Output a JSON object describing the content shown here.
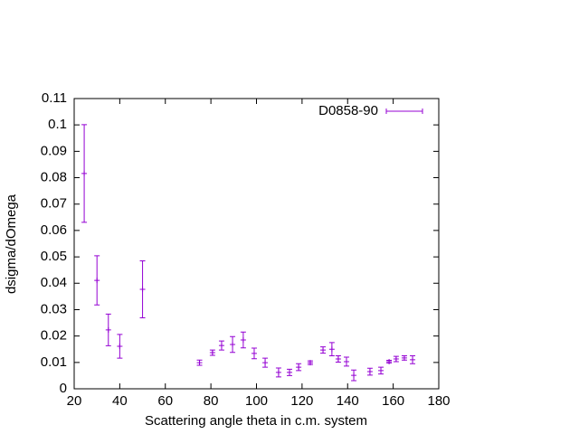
{
  "chart_data": {
    "type": "errorbar-scatter",
    "xlabel": "Scattering angle theta in c.m. system",
    "ylabel": "dsigma/dOmega",
    "xlim": [
      20,
      180
    ],
    "xticks": [
      20,
      40,
      60,
      80,
      100,
      120,
      140,
      160,
      180
    ],
    "ylim": [
      0,
      0.11
    ],
    "yticks": [
      0,
      0.01,
      0.02,
      0.03,
      0.04,
      0.05,
      0.06,
      0.07,
      0.08,
      0.09,
      0.1,
      0.11
    ],
    "legend": "top-right",
    "series": [
      {
        "name": "D0858-90",
        "color": "#9400d3",
        "x": [
          24.4,
          30,
          35,
          40,
          50,
          75,
          80.7,
          84.7,
          89.5,
          94.2,
          99,
          103.8,
          109.7,
          114.5,
          118.5,
          123.6,
          129.2,
          133.1,
          135.9,
          139.5,
          142.7,
          149.8,
          154.6,
          158.2,
          161.3,
          164.9,
          168.5
        ],
        "values": [
          0.0816,
          0.0411,
          0.0223,
          0.0161,
          0.0377,
          0.0099,
          0.0137,
          0.0164,
          0.0168,
          0.0185,
          0.0134,
          0.0099,
          0.0062,
          0.0062,
          0.0082,
          0.0099,
          0.0147,
          0.015,
          0.0113,
          0.0103,
          0.0051,
          0.0065,
          0.0069,
          0.0103,
          0.0113,
          0.0117,
          0.011
        ],
        "errors": [
          0.0185,
          0.0093,
          0.006,
          0.0045,
          0.0108,
          0.001,
          0.001,
          0.0017,
          0.003,
          0.003,
          0.002,
          0.0017,
          0.0017,
          0.0012,
          0.0013,
          0.0007,
          0.0012,
          0.0025,
          0.0012,
          0.0017,
          0.002,
          0.0013,
          0.0013,
          0.0005,
          0.001,
          0.0008,
          0.0015
        ]
      }
    ]
  }
}
